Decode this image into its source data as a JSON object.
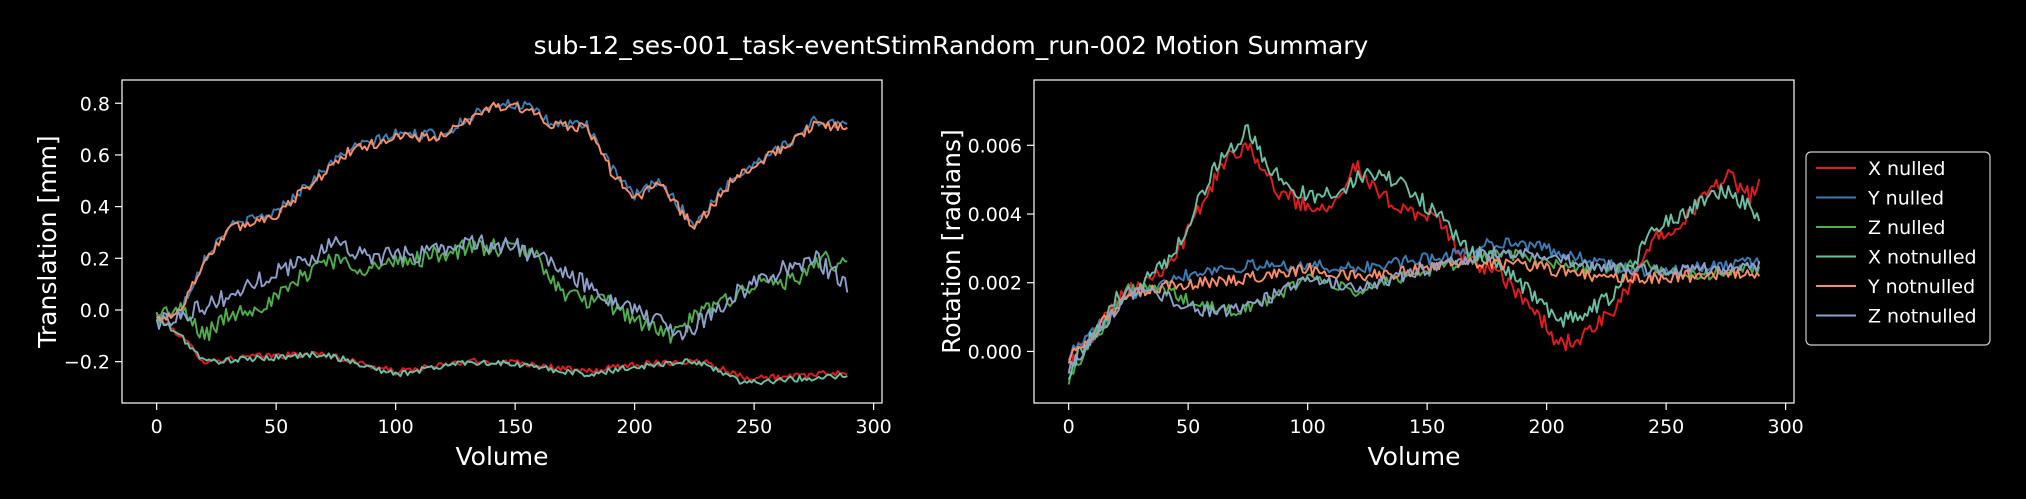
{
  "figure": {
    "title": "sub-12_ses-001_task-eventStimRandom_run-002 Motion Summary",
    "background": "#000000",
    "foreground": "#ffffff"
  },
  "legend": {
    "placement": "outside right",
    "entries": [
      "X nulled",
      "Y nulled",
      "Z nulled",
      "X notnulled",
      "Y notnulled",
      "Z notnulled"
    ]
  },
  "chart_data": [
    {
      "type": "line",
      "xlabel": "Volume",
      "ylabel": "Translation [mm]",
      "xlim": [
        -14.5,
        303.5
      ],
      "ylim": [
        -0.36,
        0.89
      ],
      "xticks": [
        0,
        50,
        100,
        150,
        200,
        250,
        300
      ],
      "yticks": [
        -0.2,
        0.0,
        0.2,
        0.4,
        0.6,
        0.8
      ],
      "ytick_labels": [
        "−0.2",
        "0.0",
        "0.2",
        "0.4",
        "0.6",
        "0.8"
      ],
      "grid": false,
      "n_volumes": 290,
      "series": [
        {
          "name": "X nulled",
          "color": "#e41a1c",
          "keypoints": [
            [
              0,
              -0.02
            ],
            [
              10,
              -0.1
            ],
            [
              20,
              -0.2
            ],
            [
              40,
              -0.18
            ],
            [
              70,
              -0.17
            ],
            [
              100,
              -0.24
            ],
            [
              130,
              -0.2
            ],
            [
              150,
              -0.2
            ],
            [
              180,
              -0.24
            ],
            [
              200,
              -0.21
            ],
            [
              220,
              -0.2
            ],
            [
              230,
              -0.2
            ],
            [
              245,
              -0.26
            ],
            [
              265,
              -0.26
            ],
            [
              289,
              -0.24
            ]
          ],
          "noise": 0.012
        },
        {
          "name": "Y nulled",
          "color": "#377eb8",
          "keypoints": [
            [
              0,
              -0.03
            ],
            [
              10,
              0.0
            ],
            [
              20,
              0.2
            ],
            [
              30,
              0.32
            ],
            [
              50,
              0.38
            ],
            [
              60,
              0.46
            ],
            [
              80,
              0.62
            ],
            [
              100,
              0.68
            ],
            [
              120,
              0.68
            ],
            [
              140,
              0.8
            ],
            [
              155,
              0.79
            ],
            [
              165,
              0.72
            ],
            [
              180,
              0.72
            ],
            [
              190,
              0.55
            ],
            [
              200,
              0.44
            ],
            [
              210,
              0.5
            ],
            [
              225,
              0.33
            ],
            [
              240,
              0.5
            ],
            [
              255,
              0.6
            ],
            [
              265,
              0.65
            ],
            [
              275,
              0.73
            ],
            [
              289,
              0.72
            ]
          ],
          "noise": 0.02
        },
        {
          "name": "Z nulled",
          "color": "#4daf4a",
          "keypoints": [
            [
              0,
              -0.02
            ],
            [
              10,
              0.0
            ],
            [
              20,
              -0.1
            ],
            [
              30,
              -0.02
            ],
            [
              50,
              0.04
            ],
            [
              70,
              0.2
            ],
            [
              90,
              0.16
            ],
            [
              110,
              0.2
            ],
            [
              130,
              0.24
            ],
            [
              150,
              0.24
            ],
            [
              160,
              0.2
            ],
            [
              170,
              0.06
            ],
            [
              190,
              0.02
            ],
            [
              205,
              -0.06
            ],
            [
              215,
              -0.1
            ],
            [
              230,
              0.0
            ],
            [
              250,
              0.1
            ],
            [
              270,
              0.12
            ],
            [
              280,
              0.2
            ],
            [
              289,
              0.16
            ]
          ],
          "noise": 0.035
        },
        {
          "name": "X notnulled",
          "color": "#66c2a5",
          "keypoints": [
            [
              0,
              -0.03
            ],
            [
              10,
              -0.1
            ],
            [
              20,
              -0.2
            ],
            [
              40,
              -0.19
            ],
            [
              70,
              -0.17
            ],
            [
              100,
              -0.25
            ],
            [
              130,
              -0.2
            ],
            [
              150,
              -0.21
            ],
            [
              180,
              -0.25
            ],
            [
              200,
              -0.22
            ],
            [
              220,
              -0.2
            ],
            [
              230,
              -0.21
            ],
            [
              245,
              -0.28
            ],
            [
              265,
              -0.27
            ],
            [
              289,
              -0.25
            ]
          ],
          "noise": 0.012
        },
        {
          "name": "Y notnulled",
          "color": "#fc8d62",
          "keypoints": [
            [
              0,
              -0.04
            ],
            [
              10,
              0.0
            ],
            [
              20,
              0.19
            ],
            [
              30,
              0.31
            ],
            [
              50,
              0.37
            ],
            [
              60,
              0.45
            ],
            [
              80,
              0.61
            ],
            [
              100,
              0.67
            ],
            [
              120,
              0.67
            ],
            [
              140,
              0.79
            ],
            [
              155,
              0.78
            ],
            [
              165,
              0.71
            ],
            [
              180,
              0.71
            ],
            [
              190,
              0.54
            ],
            [
              200,
              0.43
            ],
            [
              210,
              0.49
            ],
            [
              225,
              0.32
            ],
            [
              240,
              0.49
            ],
            [
              255,
              0.59
            ],
            [
              265,
              0.64
            ],
            [
              275,
              0.72
            ],
            [
              289,
              0.7
            ]
          ],
          "noise": 0.02
        },
        {
          "name": "Z notnulled",
          "color": "#8da0cb",
          "keypoints": [
            [
              0,
              -0.05
            ],
            [
              15,
              0.0
            ],
            [
              30,
              0.05
            ],
            [
              50,
              0.15
            ],
            [
              65,
              0.2
            ],
            [
              75,
              0.27
            ],
            [
              90,
              0.2
            ],
            [
              110,
              0.22
            ],
            [
              130,
              0.26
            ],
            [
              150,
              0.25
            ],
            [
              160,
              0.2
            ],
            [
              175,
              0.12
            ],
            [
              200,
              0.0
            ],
            [
              220,
              -0.1
            ],
            [
              240,
              0.05
            ],
            [
              260,
              0.15
            ],
            [
              275,
              0.2
            ],
            [
              289,
              0.1
            ]
          ],
          "noise": 0.035
        }
      ]
    },
    {
      "type": "line",
      "xlabel": "Volume",
      "ylabel": "Rotation [radians]",
      "xlim": [
        -14.5,
        303.5
      ],
      "ylim": [
        -0.0015,
        0.0079
      ],
      "xticks": [
        0,
        50,
        100,
        150,
        200,
        250,
        300
      ],
      "yticks": [
        0.0,
        0.002,
        0.004,
        0.006
      ],
      "ytick_labels": [
        "0.000",
        "0.002",
        "0.004",
        "0.006"
      ],
      "grid": false,
      "n_volumes": 290,
      "series": [
        {
          "name": "X nulled",
          "color": "#e41a1c",
          "keypoints": [
            [
              0,
              -0.0003
            ],
            [
              5,
              0.0001
            ],
            [
              15,
              0.0009
            ],
            [
              20,
              0.0016
            ],
            [
              35,
              0.0022
            ],
            [
              45,
              0.0028
            ],
            [
              55,
              0.0042
            ],
            [
              65,
              0.0055
            ],
            [
              75,
              0.0061
            ],
            [
              85,
              0.0048
            ],
            [
              100,
              0.0042
            ],
            [
              110,
              0.0043
            ],
            [
              120,
              0.0054
            ],
            [
              130,
              0.0045
            ],
            [
              140,
              0.0042
            ],
            [
              155,
              0.0038
            ],
            [
              165,
              0.0028
            ],
            [
              180,
              0.0022
            ],
            [
              195,
              0.0012
            ],
            [
              205,
              0.0002
            ],
            [
              215,
              0.0004
            ],
            [
              230,
              0.0013
            ],
            [
              245,
              0.0033
            ],
            [
              260,
              0.004
            ],
            [
              275,
              0.0052
            ],
            [
              285,
              0.0045
            ],
            [
              289,
              0.0048
            ]
          ],
          "noise": 0.00025
        },
        {
          "name": "Y nulled",
          "color": "#377eb8",
          "keypoints": [
            [
              0,
              -0.0001
            ],
            [
              15,
              0.0009
            ],
            [
              25,
              0.0016
            ],
            [
              40,
              0.0021
            ],
            [
              60,
              0.0024
            ],
            [
              80,
              0.0025
            ],
            [
              100,
              0.0025
            ],
            [
              120,
              0.0024
            ],
            [
              140,
              0.0026
            ],
            [
              160,
              0.0028
            ],
            [
              180,
              0.0032
            ],
            [
              200,
              0.003
            ],
            [
              220,
              0.0026
            ],
            [
              240,
              0.0023
            ],
            [
              260,
              0.0024
            ],
            [
              275,
              0.0025
            ],
            [
              289,
              0.0026
            ]
          ],
          "noise": 0.00018
        },
        {
          "name": "Z nulled",
          "color": "#4daf4a",
          "keypoints": [
            [
              0,
              -0.0008
            ],
            [
              5,
              -0.0002
            ],
            [
              15,
              0.0008
            ],
            [
              25,
              0.0018
            ],
            [
              40,
              0.0018
            ],
            [
              55,
              0.0013
            ],
            [
              70,
              0.0012
            ],
            [
              85,
              0.0015
            ],
            [
              100,
              0.0022
            ],
            [
              120,
              0.0017
            ],
            [
              140,
              0.0022
            ],
            [
              160,
              0.0025
            ],
            [
              180,
              0.0029
            ],
            [
              200,
              0.0026
            ],
            [
              220,
              0.0024
            ],
            [
              240,
              0.0025
            ],
            [
              260,
              0.0022
            ],
            [
              275,
              0.0023
            ],
            [
              289,
              0.0024
            ]
          ],
          "noise": 0.00018
        },
        {
          "name": "X notnulled",
          "color": "#66c2a5",
          "keypoints": [
            [
              0,
              -0.0006
            ],
            [
              5,
              0.0
            ],
            [
              15,
              0.0008
            ],
            [
              20,
              0.0015
            ],
            [
              35,
              0.0022
            ],
            [
              45,
              0.003
            ],
            [
              55,
              0.0045
            ],
            [
              65,
              0.0058
            ],
            [
              75,
              0.0064
            ],
            [
              85,
              0.0052
            ],
            [
              100,
              0.0045
            ],
            [
              110,
              0.0046
            ],
            [
              120,
              0.005
            ],
            [
              130,
              0.0052
            ],
            [
              140,
              0.0048
            ],
            [
              155,
              0.004
            ],
            [
              165,
              0.003
            ],
            [
              180,
              0.0026
            ],
            [
              195,
              0.0016
            ],
            [
              205,
              0.0009
            ],
            [
              215,
              0.001
            ],
            [
              230,
              0.0018
            ],
            [
              245,
              0.0036
            ],
            [
              260,
              0.0041
            ],
            [
              275,
              0.0047
            ],
            [
              285,
              0.0042
            ],
            [
              289,
              0.004
            ]
          ],
          "noise": 0.00025
        },
        {
          "name": "Y notnulled",
          "color": "#fc8d62",
          "keypoints": [
            [
              0,
              -0.0002
            ],
            [
              15,
              0.0009
            ],
            [
              25,
              0.0016
            ],
            [
              40,
              0.0019
            ],
            [
              60,
              0.002
            ],
            [
              80,
              0.0022
            ],
            [
              100,
              0.0024
            ],
            [
              120,
              0.0022
            ],
            [
              140,
              0.0023
            ],
            [
              160,
              0.0026
            ],
            [
              180,
              0.0026
            ],
            [
              200,
              0.0024
            ],
            [
              220,
              0.0022
            ],
            [
              240,
              0.0021
            ],
            [
              260,
              0.0022
            ],
            [
              275,
              0.0023
            ],
            [
              289,
              0.0022
            ]
          ],
          "noise": 0.00018
        },
        {
          "name": "Z notnulled",
          "color": "#8da0cb",
          "keypoints": [
            [
              0,
              -0.0005
            ],
            [
              15,
              0.0008
            ],
            [
              25,
              0.0017
            ],
            [
              40,
              0.0016
            ],
            [
              55,
              0.0012
            ],
            [
              70,
              0.0012
            ],
            [
              85,
              0.0016
            ],
            [
              100,
              0.0022
            ],
            [
              120,
              0.0018
            ],
            [
              140,
              0.0022
            ],
            [
              160,
              0.0026
            ],
            [
              180,
              0.0029
            ],
            [
              200,
              0.0028
            ],
            [
              220,
              0.0025
            ],
            [
              240,
              0.0024
            ],
            [
              260,
              0.0024
            ],
            [
              275,
              0.0024
            ],
            [
              289,
              0.0025
            ]
          ],
          "noise": 0.00018
        }
      ]
    }
  ]
}
